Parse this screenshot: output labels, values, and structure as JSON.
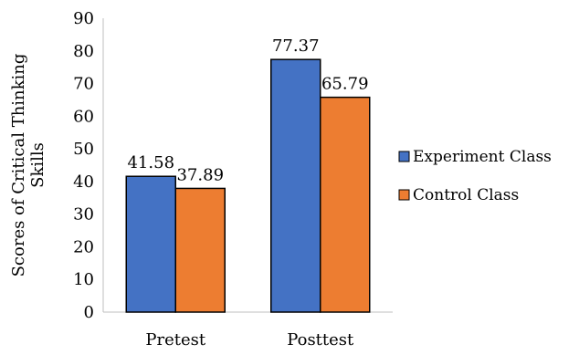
{
  "chart_data": {
    "type": "bar",
    "title": "",
    "xlabel": "",
    "ylabel": [
      "Scores of Critical Thinking",
      "Skills"
    ],
    "ylim": [
      0,
      90
    ],
    "ytick_step": 10,
    "categories": [
      "Pretest",
      "Posttest"
    ],
    "series": [
      {
        "name": "Experiment Class",
        "color": "#4472C4",
        "values": [
          41.58,
          77.37
        ]
      },
      {
        "name": "Control Class",
        "color": "#ED7D31",
        "values": [
          37.89,
          65.79
        ]
      }
    ],
    "data_labels": [
      [
        "41.58",
        "77.37"
      ],
      [
        "37.89",
        "65.79"
      ]
    ],
    "legend_position": "right",
    "grid": false,
    "bar_edge_color": "#000000"
  }
}
